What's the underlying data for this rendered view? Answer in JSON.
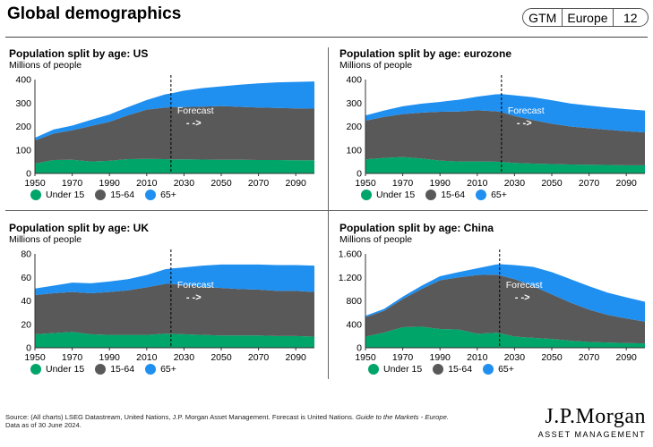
{
  "header": {
    "title": "Global demographics",
    "tag": {
      "left": "GTM",
      "mid": "Europe",
      "right": "12"
    }
  },
  "colors": {
    "under15": "#00a56a",
    "working": "#595959",
    "senior": "#1f8ff0"
  },
  "legend": {
    "under15": "Under 15",
    "working": "15-64",
    "senior": "65+"
  },
  "forecast": {
    "label": "Forecast",
    "arrow": "- ->"
  },
  "footer": {
    "source_prefix": "Source: (All charts) LSEG Datastream, United Nations, J.P. Morgan Asset Management. Forecast is United Nations. ",
    "source_italic": "Guide to the Markets - Europe.",
    "data_as_of": "Data as of 30 June 2024."
  },
  "logo": {
    "main": "J.P.Morgan",
    "sub": "ASSET MANAGEMENT"
  },
  "chart_data": [
    {
      "id": "us",
      "type": "area",
      "title": "Population split by age: US",
      "ylabel": "Millions of people",
      "ylim": [
        0,
        400
      ],
      "yticks": [
        0,
        100,
        200,
        300,
        400
      ],
      "ytick_labels": [
        "0",
        "100",
        "200",
        "300",
        "400"
      ],
      "xlim": [
        1950,
        2100
      ],
      "xticks": [
        1950,
        1970,
        1990,
        2010,
        2030,
        2050,
        2070,
        2090
      ],
      "xtick_labels": [
        "1950",
        "1970",
        "1990",
        "2010",
        "2030",
        "2050",
        "2070",
        "2090"
      ],
      "forecast_start": 2023,
      "x": [
        1950,
        1960,
        1970,
        1980,
        1990,
        2000,
        2010,
        2020,
        2023,
        2030,
        2040,
        2050,
        2060,
        2070,
        2080,
        2090,
        2100
      ],
      "series": [
        {
          "key": "under15",
          "values": [
            42,
            57,
            58,
            51,
            54,
            61,
            62,
            61,
            60,
            60,
            59,
            58,
            58,
            57,
            57,
            56,
            56
          ]
        },
        {
          "key": "working",
          "values": [
            98,
            113,
            126,
            151,
            166,
            187,
            210,
            220,
            222,
            223,
            226,
            229,
            226,
            224,
            222,
            221,
            220
          ]
        },
        {
          "key": "senior",
          "values": [
            12,
            17,
            20,
            26,
            31,
            35,
            41,
            56,
            59,
            70,
            79,
            84,
            94,
            103,
            109,
            113,
            116
          ]
        }
      ]
    },
    {
      "id": "eurozone",
      "type": "area",
      "title": "Population split by age: eurozone",
      "ylabel": "Millions of people",
      "ylim": [
        0,
        400
      ],
      "yticks": [
        0,
        100,
        200,
        300,
        400
      ],
      "ytick_labels": [
        "0",
        "100",
        "200",
        "300",
        "400"
      ],
      "xlim": [
        1950,
        2100
      ],
      "xticks": [
        1950,
        1970,
        1990,
        2010,
        2030,
        2050,
        2070,
        2090
      ],
      "xtick_labels": [
        "1950",
        "1970",
        "1990",
        "2010",
        "2030",
        "2050",
        "2070",
        "2090"
      ],
      "forecast_start": 2023,
      "x": [
        1950,
        1960,
        1970,
        1980,
        1990,
        2000,
        2010,
        2020,
        2023,
        2030,
        2040,
        2050,
        2060,
        2070,
        2080,
        2090,
        2100
      ],
      "series": [
        {
          "key": "under15",
          "values": [
            60,
            66,
            70,
            64,
            55,
            51,
            51,
            50,
            49,
            45,
            42,
            40,
            38,
            37,
            36,
            35,
            35
          ]
        },
        {
          "key": "working",
          "values": [
            165,
            175,
            183,
            195,
            208,
            213,
            218,
            215,
            212,
            200,
            185,
            172,
            162,
            156,
            150,
            145,
            140
          ]
        },
        {
          "key": "senior",
          "values": [
            22,
            27,
            33,
            38,
            42,
            50,
            58,
            72,
            77,
            88,
            98,
            100,
            98,
            96,
            95,
            94,
            93
          ]
        }
      ]
    },
    {
      "id": "uk",
      "type": "area",
      "title": "Population split by age: UK",
      "ylabel": "Millions of people",
      "ylim": [
        0,
        80
      ],
      "yticks": [
        0,
        20,
        40,
        60,
        80
      ],
      "ytick_labels": [
        "0",
        "20",
        "40",
        "60",
        "80"
      ],
      "xlim": [
        1950,
        2100
      ],
      "xticks": [
        1950,
        1970,
        1990,
        2010,
        2030,
        2050,
        2070,
        2090
      ],
      "xtick_labels": [
        "1950",
        "1970",
        "1990",
        "2010",
        "2030",
        "2050",
        "2070",
        "2090"
      ],
      "forecast_start": 2023,
      "x": [
        1950,
        1960,
        1970,
        1980,
        1990,
        2000,
        2010,
        2020,
        2023,
        2030,
        2040,
        2050,
        2060,
        2070,
        2080,
        2090,
        2100
      ],
      "series": [
        {
          "key": "under15",
          "values": [
            11.5,
            12.5,
            13.5,
            11.5,
            11,
            11,
            11,
            12,
            12,
            11.5,
            11,
            10.5,
            10.5,
            10.5,
            10,
            10,
            9.5
          ]
        },
        {
          "key": "working",
          "values": [
            33.5,
            34,
            34,
            35,
            36.5,
            38,
            40.5,
            42.5,
            42.5,
            42,
            41,
            40.5,
            39.5,
            39,
            38.5,
            38.5,
            38
          ]
        },
        {
          "key": "senior",
          "values": [
            5.5,
            6.5,
            8,
            8.5,
            9,
            9.5,
            10.5,
            12.5,
            13,
            15,
            18,
            20,
            21,
            21.5,
            22,
            22,
            22.5
          ]
        }
      ]
    },
    {
      "id": "china",
      "type": "area",
      "title": "Population split by age: China",
      "ylabel": "Millions of people",
      "ylim": [
        0,
        1600
      ],
      "yticks": [
        0,
        400,
        800,
        1200,
        1600
      ],
      "ytick_labels": [
        "0",
        "400",
        "800",
        "1.200",
        "1.600"
      ],
      "xlim": [
        1950,
        2100
      ],
      "xticks": [
        1950,
        1970,
        1990,
        2010,
        2030,
        2050,
        2070,
        2090
      ],
      "xtick_labels": [
        "1950",
        "1970",
        "1990",
        "2010",
        "2030",
        "2050",
        "2070",
        "2090"
      ],
      "forecast_start": 2022,
      "x": [
        1950,
        1960,
        1970,
        1980,
        1990,
        2000,
        2010,
        2020,
        2022,
        2030,
        2040,
        2050,
        2060,
        2070,
        2080,
        2090,
        2100
      ],
      "series": [
        {
          "key": "under15",
          "values": [
            190,
            260,
            350,
            360,
            320,
            310,
            240,
            255,
            250,
            190,
            170,
            150,
            120,
            100,
            90,
            80,
            75
          ]
        },
        {
          "key": "working",
          "values": [
            330,
            370,
            480,
            640,
            830,
            890,
            1000,
            990,
            985,
            980,
            880,
            760,
            650,
            550,
            470,
            420,
            370
          ]
        },
        {
          "key": "senior",
          "values": [
            25,
            32,
            40,
            55,
            70,
            90,
            115,
            175,
            190,
            240,
            330,
            380,
            400,
            400,
            380,
            360,
            340
          ]
        }
      ]
    }
  ]
}
